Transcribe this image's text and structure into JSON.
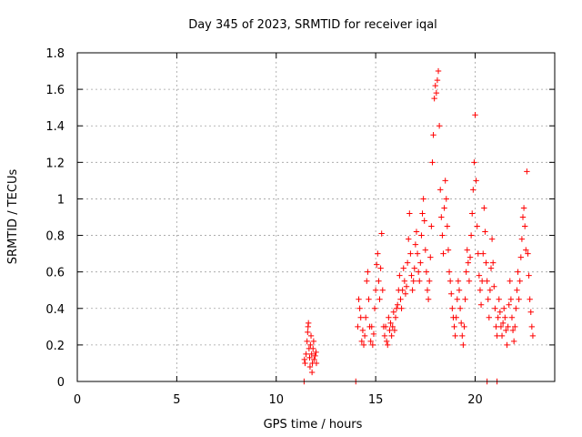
{
  "chart_data": {
    "type": "scatter",
    "title": "Day 345 of 2023, SRMTID for receiver iqal",
    "xlabel": "GPS time / hours",
    "ylabel": "SRMTID / TECUs",
    "xlim": [
      0,
      24
    ],
    "ylim": [
      0,
      1.8
    ],
    "xticks": [
      0,
      5,
      10,
      15,
      20
    ],
    "xtick_labels": [
      "0",
      "5",
      "10",
      "15",
      "20"
    ],
    "yticks": [
      0,
      0.2,
      0.4,
      0.6,
      0.8,
      1.0,
      1.2,
      1.4,
      1.6,
      1.8
    ],
    "ytick_labels": [
      "0",
      "0.2",
      "0.4",
      "0.6",
      "0.8",
      "1",
      "1.2",
      "1.4",
      "1.6",
      "1.8"
    ],
    "grid": true,
    "marker": "plus",
    "color": "#ff0000",
    "series": [
      {
        "name": "SRMTID",
        "points": [
          [
            11.4,
            0.0
          ],
          [
            11.42,
            0.12
          ],
          [
            11.45,
            0.1
          ],
          [
            11.5,
            0.15
          ],
          [
            11.55,
            0.22
          ],
          [
            11.58,
            0.27
          ],
          [
            11.6,
            0.3
          ],
          [
            11.62,
            0.32
          ],
          [
            11.65,
            0.18
          ],
          [
            11.68,
            0.13
          ],
          [
            11.7,
            0.08
          ],
          [
            11.72,
            0.2
          ],
          [
            11.75,
            0.25
          ],
          [
            11.78,
            0.15
          ],
          [
            11.8,
            0.05
          ],
          [
            11.82,
            0.1
          ],
          [
            11.85,
            0.18
          ],
          [
            11.88,
            0.22
          ],
          [
            11.9,
            0.12
          ],
          [
            11.95,
            0.14
          ],
          [
            12.0,
            0.16
          ],
          [
            12.02,
            0.1
          ],
          [
            14.0,
            0.0
          ],
          [
            14.1,
            0.3
          ],
          [
            14.15,
            0.45
          ],
          [
            14.2,
            0.4
          ],
          [
            14.25,
            0.35
          ],
          [
            14.3,
            0.22
          ],
          [
            14.35,
            0.28
          ],
          [
            14.4,
            0.2
          ],
          [
            14.45,
            0.25
          ],
          [
            14.5,
            0.35
          ],
          [
            14.55,
            0.55
          ],
          [
            14.6,
            0.6
          ],
          [
            14.65,
            0.45
          ],
          [
            14.7,
            0.3
          ],
          [
            14.75,
            0.22
          ],
          [
            14.8,
            0.3
          ],
          [
            14.85,
            0.2
          ],
          [
            14.9,
            0.26
          ],
          [
            14.95,
            0.4
          ],
          [
            15.0,
            0.5
          ],
          [
            15.05,
            0.64
          ],
          [
            15.1,
            0.7
          ],
          [
            15.15,
            0.55
          ],
          [
            15.2,
            0.45
          ],
          [
            15.25,
            0.62
          ],
          [
            15.3,
            0.81
          ],
          [
            15.35,
            0.5
          ],
          [
            15.4,
            0.3
          ],
          [
            15.45,
            0.25
          ],
          [
            15.5,
            0.3
          ],
          [
            15.55,
            0.22
          ],
          [
            15.6,
            0.2
          ],
          [
            15.65,
            0.35
          ],
          [
            15.7,
            0.28
          ],
          [
            15.75,
            0.32
          ],
          [
            15.8,
            0.25
          ],
          [
            15.85,
            0.3
          ],
          [
            15.9,
            0.38
          ],
          [
            15.95,
            0.28
          ],
          [
            16.0,
            0.35
          ],
          [
            16.05,
            0.4
          ],
          [
            16.1,
            0.42
          ],
          [
            16.15,
            0.5
          ],
          [
            16.2,
            0.58
          ],
          [
            16.25,
            0.45
          ],
          [
            16.3,
            0.4
          ],
          [
            16.35,
            0.5
          ],
          [
            16.4,
            0.62
          ],
          [
            16.45,
            0.55
          ],
          [
            16.5,
            0.48
          ],
          [
            16.55,
            0.52
          ],
          [
            16.6,
            0.65
          ],
          [
            16.65,
            0.78
          ],
          [
            16.7,
            0.92
          ],
          [
            16.75,
            0.7
          ],
          [
            16.8,
            0.58
          ],
          [
            16.85,
            0.5
          ],
          [
            16.9,
            0.55
          ],
          [
            16.95,
            0.62
          ],
          [
            17.0,
            0.75
          ],
          [
            17.05,
            0.82
          ],
          [
            17.1,
            0.7
          ],
          [
            17.15,
            0.6
          ],
          [
            17.2,
            0.55
          ],
          [
            17.25,
            0.65
          ],
          [
            17.3,
            0.8
          ],
          [
            17.35,
            0.92
          ],
          [
            17.4,
            1.0
          ],
          [
            17.45,
            0.88
          ],
          [
            17.5,
            0.72
          ],
          [
            17.55,
            0.6
          ],
          [
            17.6,
            0.5
          ],
          [
            17.65,
            0.45
          ],
          [
            17.7,
            0.55
          ],
          [
            17.75,
            0.68
          ],
          [
            17.8,
            0.85
          ],
          [
            17.85,
            1.2
          ],
          [
            17.9,
            1.35
          ],
          [
            17.95,
            1.55
          ],
          [
            18.0,
            1.62
          ],
          [
            18.05,
            1.58
          ],
          [
            18.1,
            1.65
          ],
          [
            18.15,
            1.7
          ],
          [
            18.2,
            1.4
          ],
          [
            18.25,
            1.05
          ],
          [
            18.3,
            0.9
          ],
          [
            18.35,
            0.8
          ],
          [
            18.4,
            0.7
          ],
          [
            18.45,
            0.95
          ],
          [
            18.5,
            1.1
          ],
          [
            18.55,
            1.0
          ],
          [
            18.6,
            0.85
          ],
          [
            18.65,
            0.72
          ],
          [
            18.7,
            0.6
          ],
          [
            18.75,
            0.55
          ],
          [
            18.8,
            0.48
          ],
          [
            18.85,
            0.4
          ],
          [
            18.9,
            0.35
          ],
          [
            18.95,
            0.3
          ],
          [
            19.0,
            0.25
          ],
          [
            19.05,
            0.35
          ],
          [
            19.1,
            0.45
          ],
          [
            19.15,
            0.55
          ],
          [
            19.2,
            0.5
          ],
          [
            19.25,
            0.4
          ],
          [
            19.3,
            0.32
          ],
          [
            19.35,
            0.25
          ],
          [
            19.4,
            0.2
          ],
          [
            19.45,
            0.3
          ],
          [
            19.5,
            0.45
          ],
          [
            19.55,
            0.6
          ],
          [
            19.6,
            0.72
          ],
          [
            19.65,
            0.65
          ],
          [
            19.7,
            0.55
          ],
          [
            19.75,
            0.68
          ],
          [
            19.8,
            0.8
          ],
          [
            19.85,
            0.92
          ],
          [
            19.9,
            1.05
          ],
          [
            19.95,
            1.2
          ],
          [
            20.0,
            1.46
          ],
          [
            20.05,
            1.1
          ],
          [
            20.1,
            0.85
          ],
          [
            20.15,
            0.7
          ],
          [
            20.2,
            0.58
          ],
          [
            20.25,
            0.5
          ],
          [
            20.3,
            0.42
          ],
          [
            20.35,
            0.55
          ],
          [
            20.4,
            0.7
          ],
          [
            20.45,
            0.95
          ],
          [
            20.5,
            0.82
          ],
          [
            20.55,
            0.65
          ],
          [
            20.6,
            0.55
          ],
          [
            20.65,
            0.45
          ],
          [
            20.7,
            0.35
          ],
          [
            20.75,
            0.5
          ],
          [
            20.8,
            0.62
          ],
          [
            20.85,
            0.78
          ],
          [
            20.9,
            0.65
          ],
          [
            20.95,
            0.52
          ],
          [
            21.0,
            0.4
          ],
          [
            21.05,
            0.3
          ],
          [
            21.1,
            0.25
          ],
          [
            21.15,
            0.35
          ],
          [
            21.2,
            0.45
          ],
          [
            21.25,
            0.38
          ],
          [
            21.3,
            0.3
          ],
          [
            21.35,
            0.25
          ],
          [
            21.4,
            0.32
          ],
          [
            21.45,
            0.4
          ],
          [
            21.5,
            0.35
          ],
          [
            21.55,
            0.28
          ],
          [
            21.6,
            0.2
          ],
          [
            21.65,
            0.3
          ],
          [
            21.7,
            0.42
          ],
          [
            21.75,
            0.55
          ],
          [
            21.8,
            0.45
          ],
          [
            21.85,
            0.35
          ],
          [
            21.9,
            0.28
          ],
          [
            21.95,
            0.22
          ],
          [
            22.0,
            0.3
          ],
          [
            22.05,
            0.4
          ],
          [
            22.1,
            0.5
          ],
          [
            22.15,
            0.6
          ],
          [
            22.2,
            0.45
          ],
          [
            22.25,
            0.55
          ],
          [
            22.3,
            0.68
          ],
          [
            22.35,
            0.78
          ],
          [
            22.4,
            0.9
          ],
          [
            22.45,
            0.95
          ],
          [
            22.5,
            0.85
          ],
          [
            22.55,
            0.72
          ],
          [
            22.6,
            1.15
          ],
          [
            22.65,
            0.7
          ],
          [
            22.7,
            0.58
          ],
          [
            22.75,
            0.45
          ],
          [
            22.8,
            0.38
          ],
          [
            22.85,
            0.3
          ],
          [
            22.9,
            0.25
          ],
          [
            20.6,
            0.0
          ],
          [
            21.1,
            0.0
          ]
        ]
      }
    ]
  }
}
